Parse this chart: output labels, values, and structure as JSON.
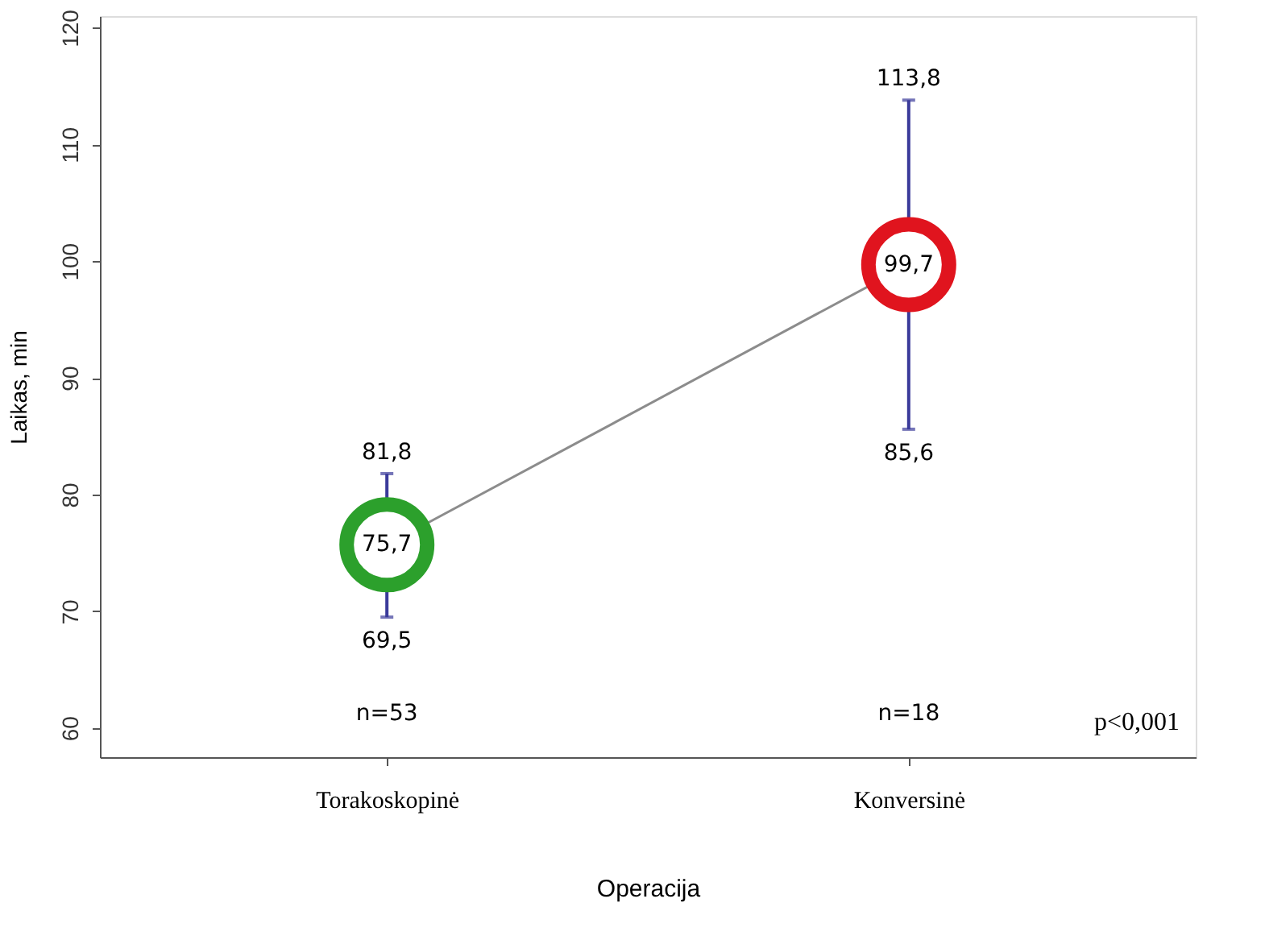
{
  "chart_data": {
    "type": "line",
    "xlabel": "Operacija",
    "ylabel": "Laikas, min",
    "categories": [
      "Torakoskopinė",
      "Konversinė"
    ],
    "ylim": [
      57.5,
      121
    ],
    "yticks": [
      60,
      70,
      80,
      90,
      100,
      110,
      120
    ],
    "grid": false,
    "series": [
      {
        "type": "line",
        "color": "#8c8c8c",
        "values": [
          75.7,
          99.7
        ],
        "line_style": "solid",
        "marker": "none"
      },
      {
        "type": "scatter",
        "colors": [
          "#2ca02c",
          "#e0141e"
        ],
        "values": [
          75.7,
          99.7
        ],
        "marker": "circle",
        "errors": [
          [
            69.5,
            81.8
          ],
          [
            85.6,
            113.8
          ]
        ],
        "value_labels": [
          "75,7",
          "99,7"
        ]
      }
    ],
    "annotations": [
      {
        "text": "81,8",
        "x": "Torakoskopinė",
        "y": 81.8
      },
      {
        "text": "69,5",
        "x": "Torakoskopinė",
        "y": 69.5
      },
      {
        "text": "113,8",
        "x": "Konversinė",
        "y": 113.8
      },
      {
        "text": "85,6",
        "x": "Konversinė",
        "y": 85.6
      },
      "n=53",
      "n=18",
      "p<0,001"
    ]
  }
}
